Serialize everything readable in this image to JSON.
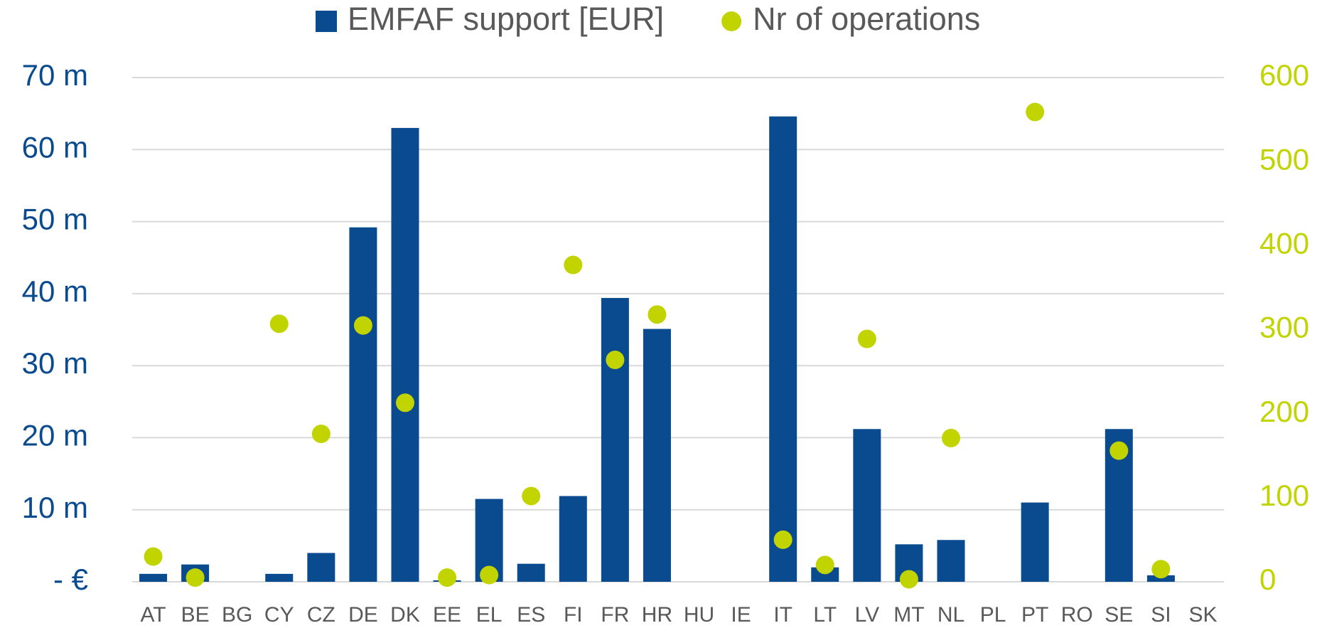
{
  "chart_data": {
    "type": "bar",
    "categories": [
      "AT",
      "BE",
      "BG",
      "CY",
      "CZ",
      "DE",
      "DK",
      "EE",
      "EL",
      "ES",
      "FI",
      "FR",
      "HR",
      "HU",
      "IE",
      "IT",
      "LT",
      "LV",
      "MT",
      "NL",
      "PL",
      "PT",
      "RO",
      "SE",
      "SI",
      "SK"
    ],
    "series": [
      {
        "name": "EMFAF support [EUR]",
        "type": "bar",
        "color": "#0a4a8f",
        "values": [
          1100000,
          2400000,
          0,
          1100000,
          4000000,
          49200000,
          63000000,
          200000,
          11500000,
          2500000,
          11900000,
          39400000,
          35100000,
          0,
          0,
          64600000,
          2000000,
          21200000,
          5200000,
          5800000,
          0,
          11000000,
          0,
          21200000,
          900000,
          0
        ]
      },
      {
        "name": "Nr of operations",
        "type": "scatter",
        "axis": "y2",
        "color": "#c2d400",
        "values": [
          30,
          5,
          null,
          307,
          176,
          305,
          213,
          5,
          8,
          102,
          377,
          264,
          318,
          null,
          null,
          50,
          20,
          289,
          3,
          171,
          null,
          559,
          null,
          156,
          15,
          null
        ]
      }
    ],
    "ylim": [
      0,
      70000000
    ],
    "yticks": [
      {
        "value": 0,
        "label": "- €"
      },
      {
        "value": 10000000,
        "label": "10 m"
      },
      {
        "value": 20000000,
        "label": "20 m"
      },
      {
        "value": 30000000,
        "label": "30 m"
      },
      {
        "value": 40000000,
        "label": "40 m"
      },
      {
        "value": 50000000,
        "label": "50 m"
      },
      {
        "value": 60000000,
        "label": "60 m"
      },
      {
        "value": 70000000,
        "label": "70 m"
      }
    ],
    "y2lim": [
      0,
      600
    ],
    "y2ticks": [
      0,
      100,
      200,
      300,
      400,
      500,
      600
    ],
    "grid": true,
    "legend": "top"
  }
}
